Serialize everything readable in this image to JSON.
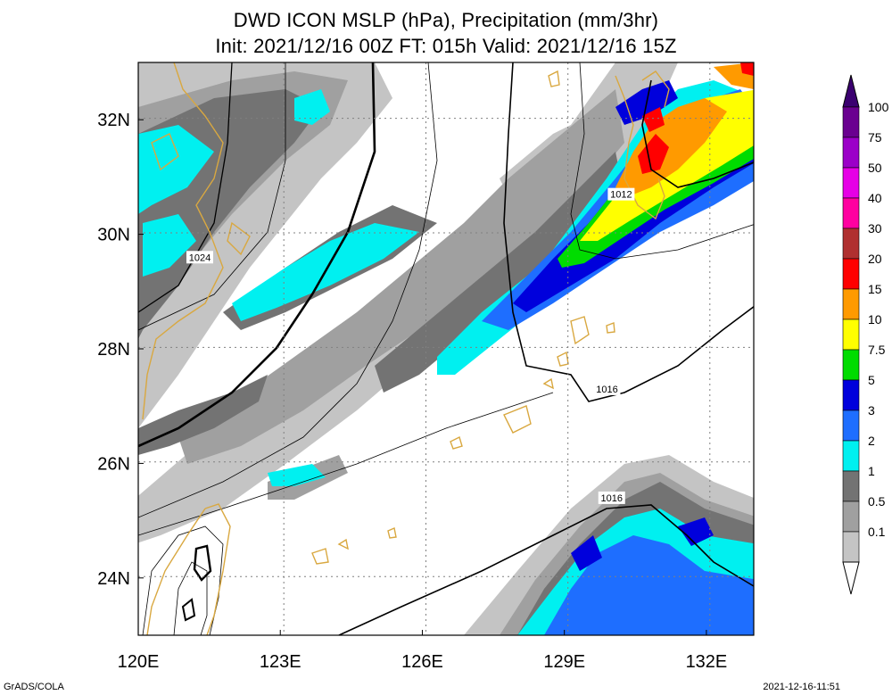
{
  "title": {
    "line1": "DWD ICON MSLP (hPa), Precipitation (mm/3hr)",
    "line2": "Init: 2021/12/16 00Z  FT: 015h  Valid: 2021/12/16 15Z"
  },
  "map": {
    "lon_range": [
      120,
      133
    ],
    "lat_range": [
      23,
      33
    ],
    "lon_ticks": [
      {
        "value": 120,
        "label": "120E"
      },
      {
        "value": 123,
        "label": "123E"
      },
      {
        "value": 126,
        "label": "126E"
      },
      {
        "value": 129,
        "label": "129E"
      },
      {
        "value": 132,
        "label": "132E"
      }
    ],
    "lat_ticks": [
      {
        "value": 24,
        "label": "24N"
      },
      {
        "value": 26,
        "label": "26N"
      },
      {
        "value": 28,
        "label": "28N"
      },
      {
        "value": 30,
        "label": "30N"
      },
      {
        "value": 32,
        "label": "32N"
      }
    ],
    "gridlines": "dotted",
    "coastline_color": "#d9a840",
    "isobar_labels": [
      {
        "text": "1024",
        "lon": 121.3,
        "lat": 29.6
      },
      {
        "text": "1012",
        "lon": 130.2,
        "lat": 30.7
      },
      {
        "text": "1016",
        "lon": 129.9,
        "lat": 27.3
      },
      {
        "text": "1016",
        "lon": 130.0,
        "lat": 25.4
      }
    ]
  },
  "colorbar": {
    "items": [
      {
        "label": "100",
        "color": "#6a0090"
      },
      {
        "label": "75",
        "color": "#9b00c8"
      },
      {
        "label": "50",
        "color": "#e600e6"
      },
      {
        "label": "40",
        "color": "#ff00a0"
      },
      {
        "label": "30",
        "color": "#b03030"
      },
      {
        "label": "20",
        "color": "#ff0000"
      },
      {
        "label": "15",
        "color": "#ff9a00"
      },
      {
        "label": "10",
        "color": "#ffff00"
      },
      {
        "label": "7.5",
        "color": "#00dc00"
      },
      {
        "label": "5",
        "color": "#0000dc"
      },
      {
        "label": "3",
        "color": "#1e6eff"
      },
      {
        "label": "2",
        "color": "#00f0f0"
      },
      {
        "label": "1",
        "color": "#737373"
      },
      {
        "label": "0.5",
        "color": "#a0a0a0"
      },
      {
        "label": "0.1",
        "color": "#c4c4c4"
      }
    ],
    "top_color": "#3b0070",
    "bottom_color": "#ffffff"
  },
  "footer": {
    "left": "GrADS/COLA",
    "right": "2021-12-16-11:51"
  }
}
